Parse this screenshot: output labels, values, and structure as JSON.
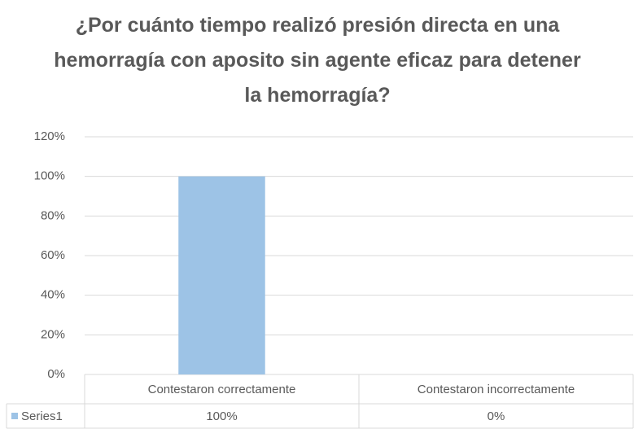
{
  "chart_data": {
    "type": "bar",
    "title": "¿Por cuánto tiempo realizó presión directa en una hemorragía con aposito sin agente eficaz para detener la hemorragía?",
    "categories": [
      "Contestaron correctamente",
      "Contestaron incorrectamente"
    ],
    "series": [
      {
        "name": "Series1",
        "color": "#9dc3e6",
        "values": [
          100,
          0
        ],
        "value_labels": [
          "100%",
          "0%"
        ]
      }
    ],
    "ylim": [
      0,
      120
    ],
    "yticks": [
      {
        "value": 0,
        "label": "0%"
      },
      {
        "value": 20,
        "label": "20%"
      },
      {
        "value": 40,
        "label": "40%"
      },
      {
        "value": 60,
        "label": "60%"
      },
      {
        "value": 80,
        "label": "80%"
      },
      {
        "value": 100,
        "label": "100%"
      },
      {
        "value": 120,
        "label": "120%"
      }
    ],
    "grid": true,
    "data_table": true
  }
}
